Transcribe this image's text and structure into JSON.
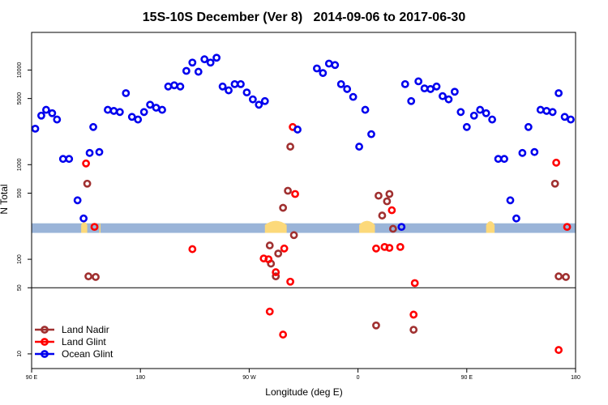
{
  "chart_data": {
    "type": "scatter",
    "title": "15S-10S December (Ver 8)   2014-09-06 to 2017-06-30",
    "xlabel": "Longitude (deg E)",
    "ylabel": "N Total",
    "y_scale": "log",
    "xlim": [
      90,
      540
    ],
    "ylim": [
      7,
      25000
    ],
    "x_ticks": [
      {
        "value": 90,
        "label": "90 E"
      },
      {
        "value": 180,
        "label": "180"
      },
      {
        "value": 270,
        "label": "90 W"
      },
      {
        "value": 360,
        "label": "0"
      },
      {
        "value": 450,
        "label": "90 E"
      },
      {
        "value": 540,
        "label": "180"
      }
    ],
    "y_ticks": [
      {
        "value": 10,
        "label": "10"
      },
      {
        "value": 50,
        "label": "50"
      },
      {
        "value": 100,
        "label": "100"
      },
      {
        "value": 500,
        "label": "500"
      },
      {
        "value": 1000,
        "label": "1000"
      },
      {
        "value": 5000,
        "label": "5000"
      },
      {
        "value": 10000,
        "label": "10000"
      }
    ],
    "reference_line_y": 50,
    "band_y_range": [
      190,
      240
    ],
    "band_colors": {
      "ocean": "#9ab4d8",
      "land": "#fcd97a"
    },
    "land_segments": [
      [
        131,
        136
      ],
      [
        146,
        147
      ],
      [
        283,
        301
      ],
      [
        361,
        374
      ],
      [
        466,
        473
      ]
    ],
    "colors": {
      "Land Nadir": "#a03030",
      "Land Glint": "#ff0000",
      "Ocean Glint": "#0000ee"
    },
    "legend_position": "bottom-left",
    "series": [
      {
        "name": "Land Nadir",
        "points": [
          [
            136,
            630
          ],
          [
            137,
            66
          ],
          [
            143,
            65
          ],
          [
            287,
            140
          ],
          [
            288,
            90
          ],
          [
            292,
            66
          ],
          [
            294,
            115
          ],
          [
            298,
            350
          ],
          [
            302,
            530
          ],
          [
            304,
            1550
          ],
          [
            307,
            180
          ],
          [
            375,
            20
          ],
          [
            377,
            470
          ],
          [
            380,
            290
          ],
          [
            384,
            410
          ],
          [
            386,
            490
          ],
          [
            389,
            210
          ],
          [
            406,
            18
          ],
          [
            523,
            630
          ],
          [
            526,
            66
          ],
          [
            532,
            65
          ]
        ]
      },
      {
        "name": "Land Glint",
        "points": [
          [
            135,
            1030
          ],
          [
            142,
            220
          ],
          [
            223,
            128
          ],
          [
            282,
            102
          ],
          [
            286,
            100
          ],
          [
            287,
            28
          ],
          [
            292,
            73
          ],
          [
            298,
            16
          ],
          [
            299,
            130
          ],
          [
            304,
            58
          ],
          [
            306,
            2500
          ],
          [
            308,
            490
          ],
          [
            375,
            130
          ],
          [
            382,
            135
          ],
          [
            386,
            132
          ],
          [
            388,
            330
          ],
          [
            395,
            135
          ],
          [
            406,
            26
          ],
          [
            407,
            56
          ],
          [
            524,
            1050
          ],
          [
            526,
            11
          ],
          [
            533,
            220
          ]
        ]
      },
      {
        "name": "Ocean Glint",
        "points": [
          [
            93,
            2400
          ],
          [
            98,
            3300
          ],
          [
            102,
            3800
          ],
          [
            107,
            3500
          ],
          [
            111,
            3000
          ],
          [
            116,
            1150
          ],
          [
            121,
            1150
          ],
          [
            128,
            420
          ],
          [
            133,
            270
          ],
          [
            138,
            1330
          ],
          [
            141,
            2500
          ],
          [
            146,
            1360
          ],
          [
            153,
            3800
          ],
          [
            158,
            3700
          ],
          [
            163,
            3600
          ],
          [
            168,
            5700
          ],
          [
            173,
            3200
          ],
          [
            178,
            3000
          ],
          [
            183,
            3600
          ],
          [
            188,
            4300
          ],
          [
            193,
            4000
          ],
          [
            198,
            3800
          ],
          [
            203,
            6700
          ],
          [
            208,
            6900
          ],
          [
            213,
            6700
          ],
          [
            218,
            9800
          ],
          [
            223,
            12000
          ],
          [
            228,
            9600
          ],
          [
            233,
            13000
          ],
          [
            238,
            12000
          ],
          [
            243,
            13500
          ],
          [
            248,
            6700
          ],
          [
            253,
            6100
          ],
          [
            258,
            7100
          ],
          [
            263,
            7100
          ],
          [
            268,
            5800
          ],
          [
            273,
            4900
          ],
          [
            278,
            4300
          ],
          [
            283,
            4700
          ],
          [
            310,
            2350
          ],
          [
            326,
            10400
          ],
          [
            331,
            9300
          ],
          [
            336,
            11700
          ],
          [
            341,
            11300
          ],
          [
            346,
            7100
          ],
          [
            351,
            6300
          ],
          [
            356,
            5200
          ],
          [
            361,
            1550
          ],
          [
            366,
            3800
          ],
          [
            371,
            2100
          ],
          [
            396,
            220
          ],
          [
            399,
            7100
          ],
          [
            404,
            4700
          ],
          [
            410,
            7600
          ],
          [
            415,
            6400
          ],
          [
            420,
            6300
          ],
          [
            425,
            6700
          ],
          [
            430,
            5300
          ],
          [
            435,
            4900
          ],
          [
            440,
            5900
          ],
          [
            445,
            3600
          ],
          [
            450,
            2500
          ],
          [
            456,
            3300
          ],
          [
            461,
            3800
          ],
          [
            466,
            3500
          ],
          [
            471,
            3000
          ],
          [
            476,
            1150
          ],
          [
            481,
            1150
          ],
          [
            486,
            420
          ],
          [
            491,
            270
          ],
          [
            496,
            1330
          ],
          [
            501,
            2500
          ],
          [
            506,
            1360
          ],
          [
            511,
            3800
          ],
          [
            516,
            3700
          ],
          [
            521,
            3600
          ],
          [
            526,
            5700
          ],
          [
            531,
            3200
          ],
          [
            536,
            3000
          ]
        ]
      }
    ]
  }
}
